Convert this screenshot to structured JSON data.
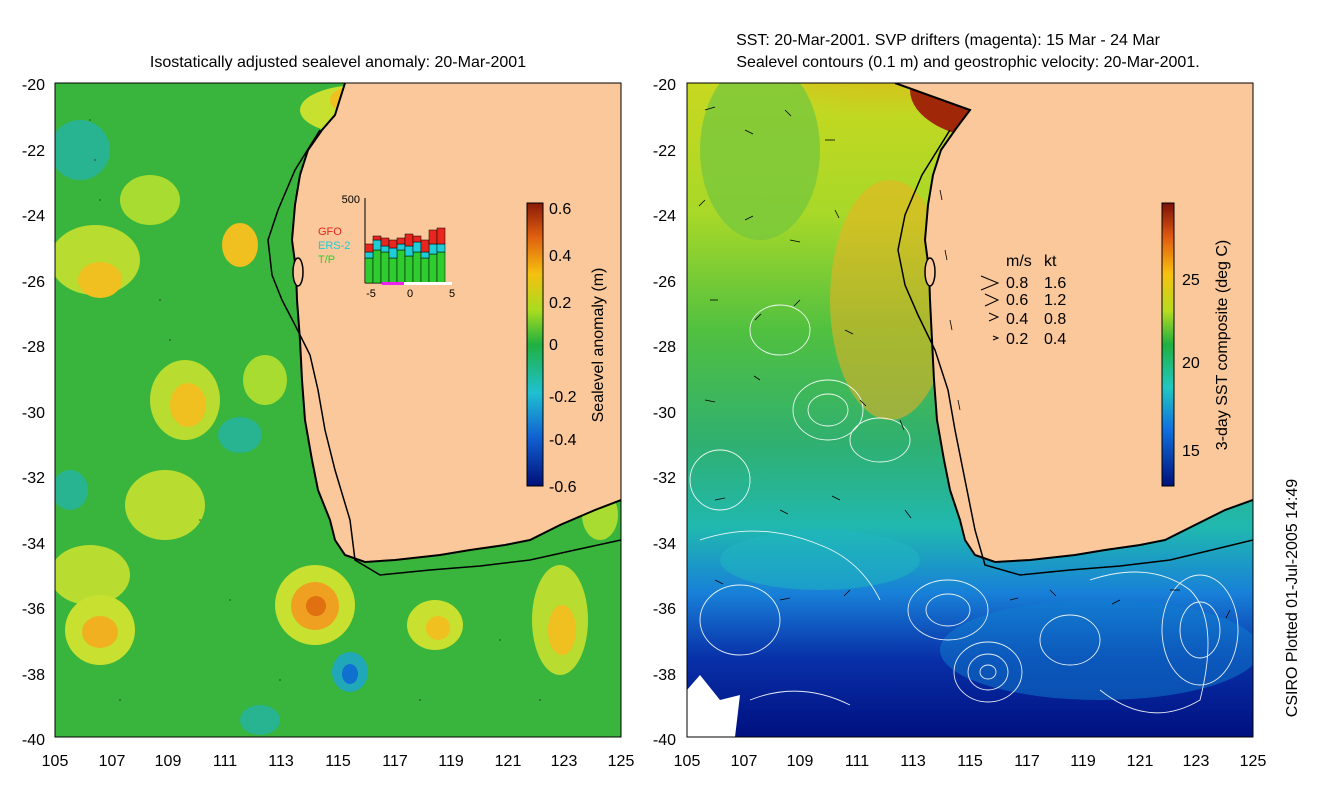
{
  "left": {
    "title": "Isostatically adjusted sealevel anomaly: 20-Mar-2001",
    "colorbar": {
      "label": "Sealevel anomaly (m)",
      "ticks": [
        "0.6",
        "0.4",
        "0.2",
        "0",
        "-0.2",
        "-0.4",
        "-0.6"
      ]
    },
    "inset": {
      "ymax_label": "500",
      "legend": [
        {
          "name": "GFO",
          "color": "#e8261e"
        },
        {
          "name": "ERS-2",
          "color": "#1ecdd6"
        },
        {
          "name": "T/P",
          "color": "#2fcc2f"
        }
      ],
      "xticks": [
        "-5",
        "0",
        "5"
      ]
    }
  },
  "right": {
    "title_line1": "SST: 20-Mar-2001. SVP drifters (magenta): 15 Mar - 24 Mar",
    "title_line2": "Sealevel contours (0.1 m) and geostrophic velocity: 20-Mar-2001.",
    "colorbar": {
      "label": "3-day SST composite (deg C)",
      "ticks": [
        "25",
        "20",
        "15"
      ]
    },
    "velocity_key": {
      "header_ms": "m/s",
      "header_kt": "kt",
      "rows": [
        {
          "ms": "0.8",
          "kt": "1.6"
        },
        {
          "ms": "0.6",
          "kt": "1.2"
        },
        {
          "ms": "0.4",
          "kt": "0.8"
        },
        {
          "ms": "0.2",
          "kt": "0.4"
        }
      ]
    }
  },
  "axes": {
    "yticks": [
      "-20",
      "-22",
      "-24",
      "-26",
      "-28",
      "-30",
      "-32",
      "-34",
      "-36",
      "-38",
      "-40"
    ],
    "xticks": [
      "105",
      "107",
      "109",
      "111",
      "113",
      "115",
      "117",
      "119",
      "121",
      "123",
      "125"
    ]
  },
  "credit": "CSIRO Plotted 01-Jul-2005 14:49"
}
